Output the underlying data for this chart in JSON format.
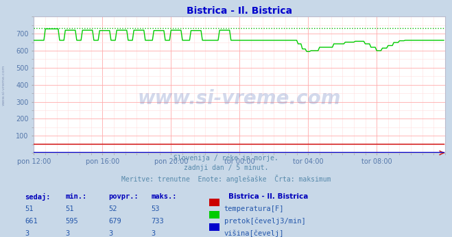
{
  "title": "Bistrica - Il. Bistrica",
  "title_color": "#0000cc",
  "bg_color": "#c8d8e8",
  "plot_bg_color": "#ffffff",
  "grid_color_major": "#ffaaaa",
  "grid_color_minor": "#ffdddd",
  "tick_label_color": "#5577aa",
  "x_tick_labels": [
    "pon 12:00",
    "pon 16:00",
    "pon 20:00",
    "tor 00:00",
    "tor 04:00",
    "tor 08:00"
  ],
  "x_tick_positions": [
    0,
    48,
    96,
    144,
    192,
    240
  ],
  "ylim": [
    0,
    800
  ],
  "yticks": [
    100,
    200,
    300,
    400,
    500,
    600,
    700
  ],
  "xlim": [
    0,
    288
  ],
  "max_line_value": 733,
  "max_line_color": "#00bb00",
  "watermark_text": "www.si-vreme.com",
  "watermark_color": "#3355aa",
  "watermark_alpha": 0.22,
  "subtitle_lines": [
    "Slovenija / reke in morje.",
    "zadnji dan / 5 minut.",
    "Meritve: trenutne  Enote: anglešaške  Črta: maksimum"
  ],
  "subtitle_color": "#5588aa",
  "table_headers": [
    "sedaj:",
    "min.:",
    "povpr.:",
    "maks.:"
  ],
  "table_header_color": "#0000bb",
  "table_value_color": "#2255aa",
  "table_rows": [
    {
      "sedaj": "51",
      "min": "51",
      "povpr": "52",
      "maks": "53",
      "color": "#cc0000",
      "label": "temperatura[F]"
    },
    {
      "sedaj": "661",
      "min": "595",
      "povpr": "679",
      "maks": "733",
      "color": "#00cc00",
      "label": "pretok[čevelj3/min]"
    },
    {
      "sedaj": "3",
      "min": "3",
      "povpr": "3",
      "maks": "3",
      "color": "#0000cc",
      "label": "višina[čevelj]"
    }
  ],
  "table_title": "Bistrica - Il. Bistrica",
  "left_label": "www.si-vreme.com",
  "left_label_color": "#8899bb"
}
